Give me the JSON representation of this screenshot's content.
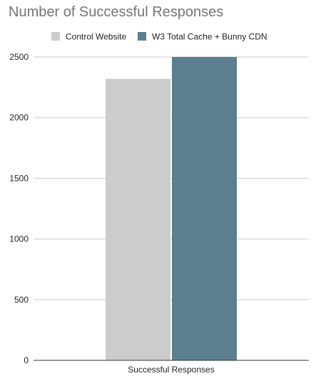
{
  "chart_data": {
    "type": "bar",
    "title": "Number of Successful Responses",
    "categories": [
      "Successful Responses"
    ],
    "series": [
      {
        "name": "Control Website",
        "values": [
          2320
        ],
        "color": "#cccccc"
      },
      {
        "name": "W3 Total Cache + Bunny CDN",
        "values": [
          2500
        ],
        "color": "#5b7f8f"
      }
    ],
    "xlabel": "",
    "ylabel": "",
    "ylim": [
      0,
      2500
    ],
    "yticks": [
      0,
      500,
      1000,
      1500,
      2000,
      2500
    ],
    "grid": true,
    "legend_position": "top"
  }
}
